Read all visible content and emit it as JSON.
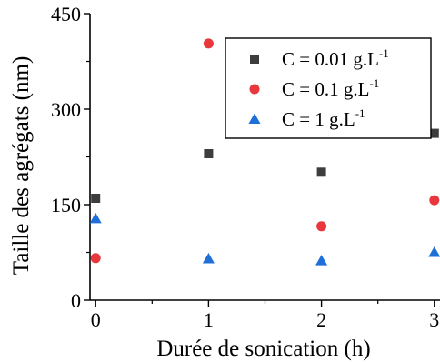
{
  "chart_data": {
    "type": "scatter",
    "xlabel": "Durée de sonication (h)",
    "ylabel": "Taille des agrégats (nm)",
    "xlim": [
      -0.05,
      3.05
    ],
    "ylim": [
      0,
      450
    ],
    "x_ticks": [
      0,
      1,
      2,
      3
    ],
    "x_tick_labels": [
      "0",
      "1",
      "2",
      "3"
    ],
    "y_ticks": [
      0,
      150,
      300,
      450
    ],
    "y_tick_labels": [
      "0",
      "150",
      "300",
      "450"
    ],
    "grid": false,
    "legend_position": "top-right",
    "series": [
      {
        "name": "C = 0.01 g.L",
        "name_superscript": "-1",
        "marker": "square",
        "color": "#3d3d3d",
        "points": [
          {
            "x": 0,
            "y": 160
          },
          {
            "x": 1,
            "y": 230
          },
          {
            "x": 2,
            "y": 201
          },
          {
            "x": 3,
            "y": 262
          }
        ]
      },
      {
        "name": "C = 0.1 g.L",
        "name_superscript": "-1",
        "marker": "circle",
        "color": "#e8373d",
        "points": [
          {
            "x": 0,
            "y": 66
          },
          {
            "x": 1,
            "y": 403
          },
          {
            "x": 2,
            "y": 116
          },
          {
            "x": 3,
            "y": 157
          }
        ]
      },
      {
        "name": "C = 1 g.L",
        "name_superscript": "-1",
        "marker": "triangle",
        "color": "#1f6fd9",
        "points": [
          {
            "x": 0,
            "y": 128
          },
          {
            "x": 1,
            "y": 65
          },
          {
            "x": 2,
            "y": 62
          },
          {
            "x": 3,
            "y": 75
          }
        ]
      }
    ]
  }
}
